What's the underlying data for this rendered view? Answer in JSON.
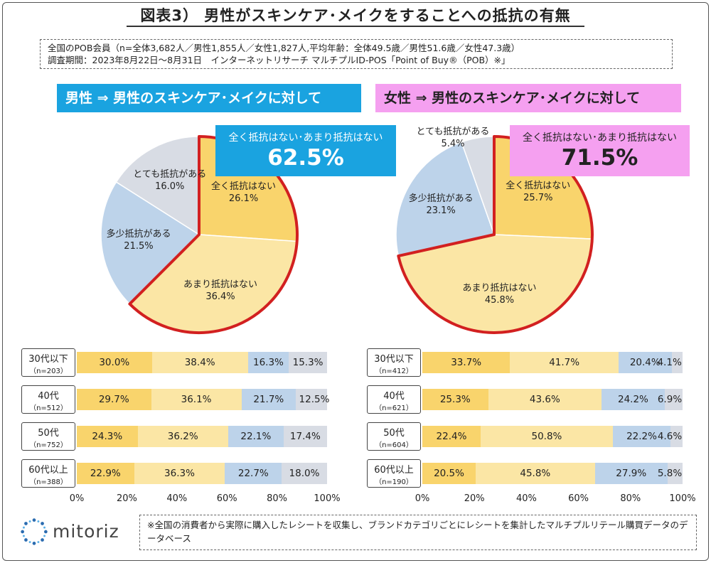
{
  "title": "図表3） 男性がスキンケア･メイクをすることへの抵抗の有無",
  "info": {
    "line1": "全国のPOB会員（n=全体3,682人／男性1,855人／女性1,827人,平均年齢：全体49.5歳／男性51.6歳／女性47.3歳）",
    "line2": "調査期間：2023年8月22日～8月31日　インターネットリサーチ マルチプルID-POS「Point of Buy®（POB）※」"
  },
  "colors": {
    "none_at_all": "#f9d46c",
    "not_much": "#fbe6a5",
    "somewhat": "#bdd3ea",
    "very": "#d8dce4",
    "highlight": "#d22020",
    "male_head": "#1aa3e0",
    "female_head": "#f5a0f0"
  },
  "male": {
    "header": "男性 ⇒ 男性のスキンケア･メイクに対して",
    "callout_label": "全く抵抗はない･あまり抵抗はない",
    "callout_value": "62.5%"
  },
  "female": {
    "header": "女性 ⇒ 男性のスキンケア･メイクに対して",
    "callout_label": "全く抵抗はない･あまり抵抗はない",
    "callout_value": "71.5%"
  },
  "chart_data": [
    {
      "type": "pie",
      "id": "male_pie",
      "categories": [
        "全く抵抗はない",
        "あまり抵抗はない",
        "多少抵抗がある",
        "とても抵抗がある"
      ],
      "values": [
        26.1,
        36.4,
        21.5,
        16.0
      ],
      "labels": [
        "26.1%",
        "36.4%",
        "21.5%",
        "16.0%"
      ]
    },
    {
      "type": "pie",
      "id": "female_pie",
      "categories": [
        "全く抵抗はない",
        "あまり抵抗はない",
        "多少抵抗がある",
        "とても抵抗がある"
      ],
      "values": [
        25.7,
        45.8,
        23.1,
        5.4
      ],
      "labels": [
        "25.7%",
        "45.8%",
        "23.1%",
        "5.4%"
      ]
    },
    {
      "type": "bar",
      "id": "male_bars",
      "stacked": true,
      "orientation": "horizontal",
      "categories": [
        "30代以下",
        "40代",
        "50代",
        "60代以上"
      ],
      "n_labels": [
        "（n=203）",
        "（n=512）",
        "（n=752）",
        "（n=388）"
      ],
      "series": [
        {
          "values": [
            30.0,
            29.7,
            24.3,
            22.9
          ]
        },
        {
          "values": [
            38.4,
            36.1,
            36.2,
            36.3
          ]
        },
        {
          "values": [
            16.3,
            21.7,
            22.1,
            22.7
          ]
        },
        {
          "values": [
            15.3,
            12.5,
            17.4,
            18.0
          ]
        }
      ],
      "labels": [
        [
          "30.0%",
          "38.4%",
          "16.3%",
          "15.3%"
        ],
        [
          "29.7%",
          "36.1%",
          "21.7%",
          "12.5%"
        ],
        [
          "24.3%",
          "36.2%",
          "22.1%",
          "17.4%"
        ],
        [
          "22.9%",
          "36.3%",
          "22.7%",
          "18.0%"
        ]
      ],
      "xlim": [
        0,
        100
      ],
      "xticks": [
        "0%",
        "20%",
        "40%",
        "60%",
        "80%",
        "100%"
      ]
    },
    {
      "type": "bar",
      "id": "female_bars",
      "stacked": true,
      "orientation": "horizontal",
      "categories": [
        "30代以下",
        "40代",
        "50代",
        "60代以上"
      ],
      "n_labels": [
        "（n=412）",
        "（n=621）",
        "（n=604）",
        "（n=190）"
      ],
      "series": [
        {
          "values": [
            33.7,
            25.3,
            22.4,
            20.5
          ]
        },
        {
          "values": [
            41.7,
            43.6,
            50.8,
            45.8
          ]
        },
        {
          "values": [
            20.4,
            24.2,
            22.2,
            27.9
          ]
        },
        {
          "values": [
            4.1,
            6.9,
            4.6,
            5.8
          ]
        }
      ],
      "labels": [
        [
          "33.7%",
          "41.7%",
          "20.4%",
          "4.1%"
        ],
        [
          "25.3%",
          "43.6%",
          "24.2%",
          "6.9%"
        ],
        [
          "22.4%",
          "50.8%",
          "22.2%",
          "4.6%"
        ],
        [
          "20.5%",
          "45.8%",
          "27.9%",
          "5.8%"
        ]
      ],
      "xlim": [
        0,
        100
      ],
      "xticks": [
        "0%",
        "20%",
        "40%",
        "60%",
        "80%",
        "100%"
      ]
    }
  ],
  "logo_text": "mitoriz",
  "footnote": "※全国の消費者から実際に購入したレシートを収集し、ブランドカテゴリごとにレシートを集計したマルチプルリテール購買データのデータベース"
}
